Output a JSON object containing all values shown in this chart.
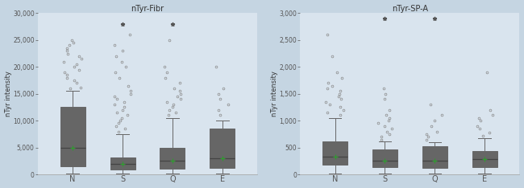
{
  "title_left": "nTyr-Fibr",
  "title_right": "nTyr-SP-A",
  "ylabel": "nTyr intensity",
  "categories": [
    "N",
    "S",
    "Q",
    "E"
  ],
  "bg_color": "#d9e4ee",
  "fig_bg_color": "#c5d5e2",
  "plot1": {
    "ylim": [
      0,
      30000
    ],
    "yticks": [
      0,
      5000,
      10000,
      15000,
      20000,
      25000,
      30000
    ],
    "ytick_labels": [
      "0",
      "5,000",
      "10,000",
      "15,000",
      "20,000",
      "25,000",
      "30,000"
    ],
    "boxes": {
      "N": {
        "q1": 1500,
        "median": 5000,
        "q3": 12500,
        "whislo": 200,
        "whishi": 15500
      },
      "S": {
        "q1": 900,
        "median": 2000,
        "q3": 3200,
        "whislo": 100,
        "whishi": 7500
      },
      "Q": {
        "q1": 1000,
        "median": 2500,
        "q3": 5000,
        "whislo": 100,
        "whishi": 10500
      },
      "E": {
        "q1": 1200,
        "median": 3000,
        "q3": 8500,
        "whislo": 200,
        "whishi": 10000
      }
    },
    "outliers": {
      "N": [
        16000,
        16200,
        17000,
        17500,
        18000,
        18500,
        19000,
        19500,
        20000,
        20500,
        21000,
        21500,
        22000,
        22500,
        23000,
        23500,
        24000,
        24500,
        25000
      ],
      "S": [
        8000,
        8500,
        9000,
        9500,
        10000,
        10500,
        11000,
        11500,
        12000,
        12500,
        13000,
        13500,
        14000,
        14500,
        15000,
        15500,
        16500,
        18000,
        19000,
        20000,
        21000,
        22000,
        23000,
        24000,
        26000
      ],
      "Q": [
        11000,
        11500,
        12000,
        12500,
        13000,
        13500,
        14000,
        14500,
        15000,
        15500,
        16000,
        17000,
        18000,
        19000,
        20000,
        25000
      ],
      "E": [
        11000,
        12000,
        13000,
        14000,
        15000,
        16000,
        20000
      ]
    },
    "extremes": {
      "S": [
        28000
      ],
      "Q": [
        28000
      ]
    }
  },
  "plot2": {
    "ylim": [
      0,
      3000
    ],
    "yticks": [
      0,
      500,
      1000,
      1500,
      2000,
      2500,
      3000
    ],
    "ytick_labels": [
      "0",
      "500",
      "1,000",
      "1,500",
      "2,000",
      "2,500",
      "3,000"
    ],
    "boxes": {
      "N": {
        "q1": 180,
        "median": 330,
        "q3": 620,
        "whislo": 20,
        "whishi": 1050
      },
      "S": {
        "q1": 140,
        "median": 260,
        "q3": 460,
        "whislo": 20,
        "whishi": 620
      },
      "Q": {
        "q1": 120,
        "median": 260,
        "q3": 520,
        "whislo": 20,
        "whishi": 600
      },
      "E": {
        "q1": 140,
        "median": 280,
        "q3": 440,
        "whislo": 20,
        "whishi": 680
      }
    },
    "outliers": {
      "N": [
        1100,
        1150,
        1200,
        1250,
        1300,
        1350,
        1400,
        1450,
        1500,
        1550,
        1600,
        1650,
        1700,
        1800,
        1900,
        2200,
        2600
      ],
      "S": [
        650,
        700,
        750,
        800,
        850,
        900,
        950,
        1000,
        1050,
        1100,
        1200,
        1400,
        1500,
        1600
      ],
      "Q": [
        650,
        700,
        750,
        800,
        900,
        1000,
        1100,
        1300
      ],
      "E": [
        720,
        780,
        850,
        900,
        1000,
        1050,
        1100,
        1200,
        1900
      ]
    },
    "extremes": {
      "S": [
        2900
      ],
      "Q": [
        2900
      ]
    }
  }
}
